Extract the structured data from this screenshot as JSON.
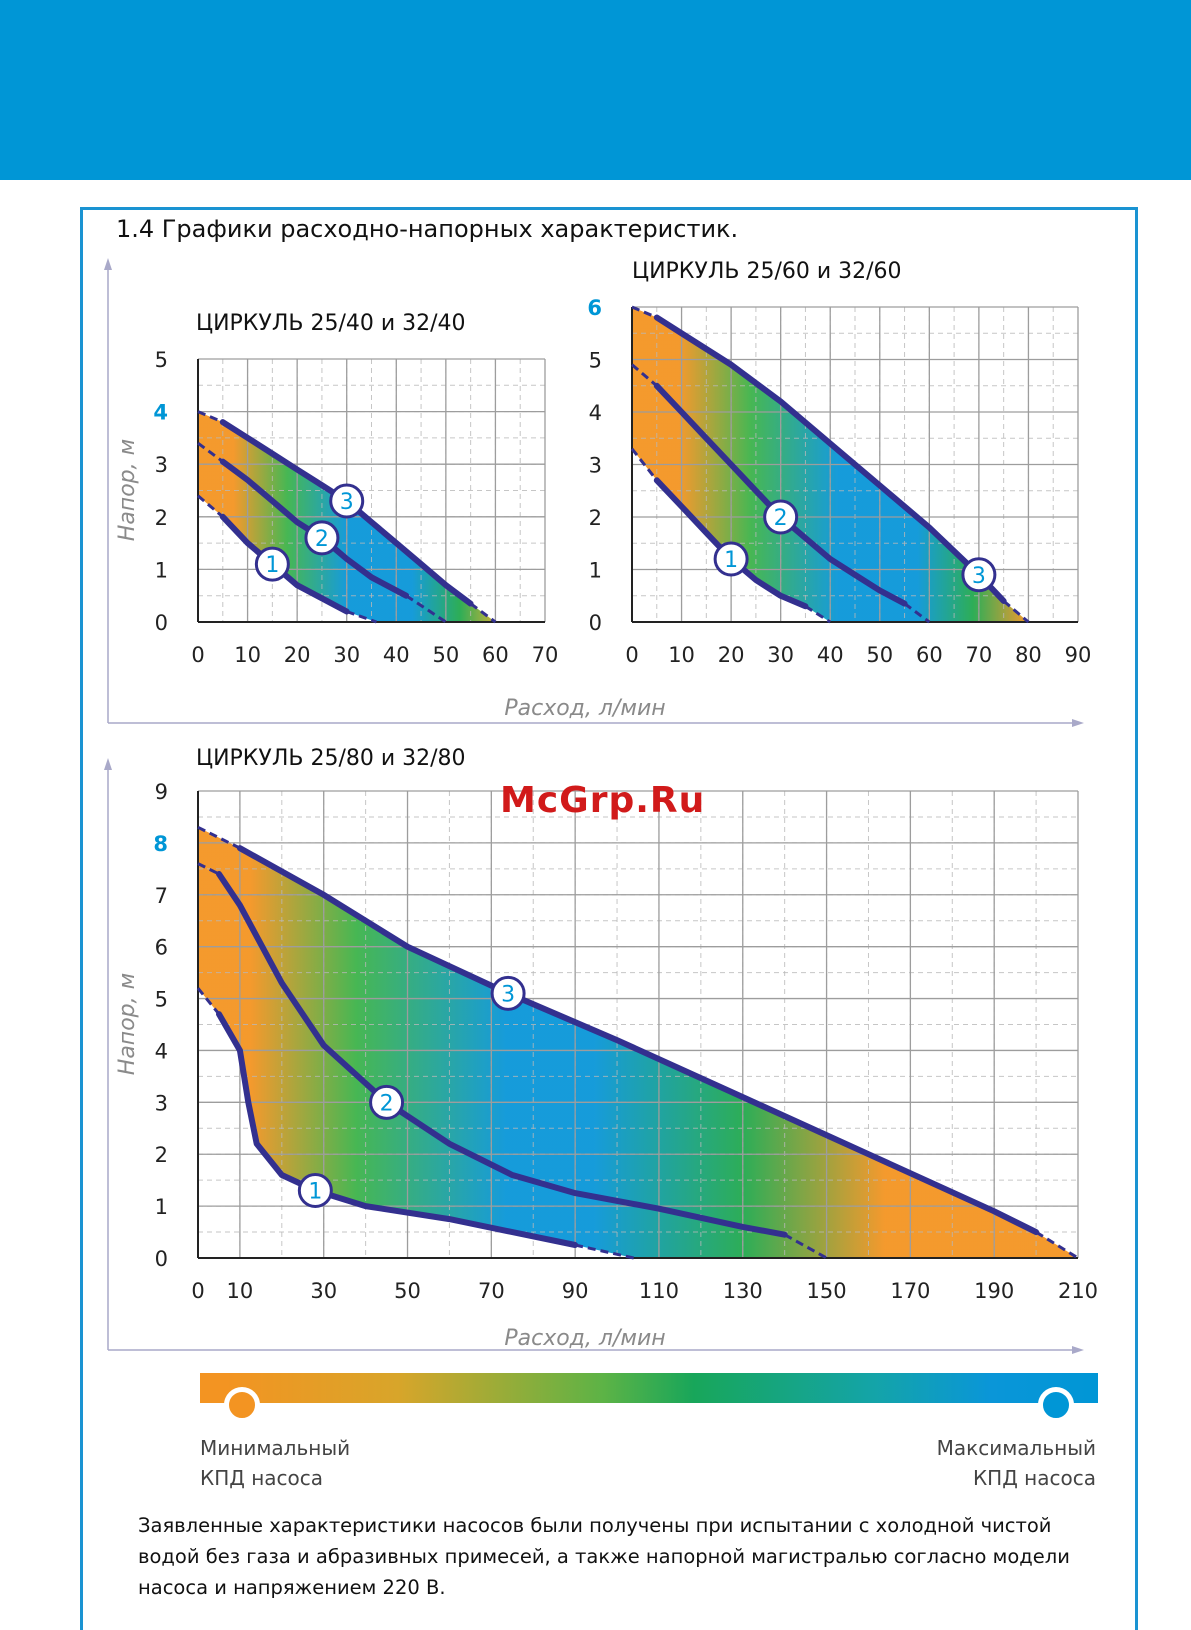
{
  "section_title": "1.4 Графики расходно-напорных характеристик.",
  "watermark": "McGrp.Ru",
  "colors": {
    "header": "#0096d6",
    "curve": "#33308f",
    "min_eff": "#f39422",
    "max_eff": "#0096d6",
    "grid": "#b8b8b8"
  },
  "legend": {
    "min_line1": "Минимальный",
    "min_line2": "КПД насоса",
    "max_line1": "Максимальный",
    "max_line2": "КПД насоса"
  },
  "note": "Заявленные характеристики насосов были получены при испытании с холодной чистой водой без газа и абразивных примесей, а также напорной магистралью согласно модели насоса и напряжением 220 В.",
  "chart_data": [
    {
      "type": "line",
      "title": "ЦИРКУЛЬ 25/40 и 32/40",
      "xlabel": "Расход, л/мин",
      "ylabel": "Напор, м",
      "xlim": [
        0,
        70
      ],
      "ylim": [
        0,
        5
      ],
      "x_ticks": [
        "0",
        "10",
        "20",
        "30",
        "40",
        "50",
        "60",
        "70"
      ],
      "y_ticks": [
        "0",
        "1",
        "2",
        "3",
        "4",
        "5"
      ],
      "highlight_y": "4",
      "grid": true,
      "series": [
        {
          "name": "1",
          "points": [
            [
              0,
              2.4
            ],
            [
              5,
              2.0
            ],
            [
              10,
              1.5
            ],
            [
              15,
              1.1
            ],
            [
              20,
              0.7
            ],
            [
              25,
              0.45
            ],
            [
              30,
              0.2
            ],
            [
              36,
              0.0
            ]
          ]
        },
        {
          "name": "2",
          "points": [
            [
              0,
              3.4
            ],
            [
              5,
              3.05
            ],
            [
              10,
              2.7
            ],
            [
              15,
              2.3
            ],
            [
              20,
              1.9
            ],
            [
              25,
              1.6
            ],
            [
              30,
              1.2
            ],
            [
              35,
              0.85
            ],
            [
              42,
              0.5
            ],
            [
              50,
              0.0
            ]
          ]
        },
        {
          "name": "3",
          "points": [
            [
              0,
              4.0
            ],
            [
              5,
              3.8
            ],
            [
              10,
              3.5
            ],
            [
              15,
              3.2
            ],
            [
              20,
              2.9
            ],
            [
              25,
              2.6
            ],
            [
              30,
              2.3
            ],
            [
              35,
              1.9
            ],
            [
              40,
              1.5
            ],
            [
              45,
              1.1
            ],
            [
              50,
              0.7
            ],
            [
              55,
              0.35
            ],
            [
              60,
              0.0
            ]
          ]
        }
      ]
    },
    {
      "type": "line",
      "title": "ЦИРКУЛЬ 25/60 и 32/60",
      "xlabel": "Расход, л/мин",
      "ylabel": "Напор, м",
      "xlim": [
        0,
        90
      ],
      "ylim": [
        0,
        6
      ],
      "x_ticks": [
        "0",
        "10",
        "20",
        "30",
        "40",
        "50",
        "60",
        "70",
        "80",
        "90"
      ],
      "y_ticks": [
        "0",
        "1",
        "2",
        "3",
        "4",
        "5",
        "6"
      ],
      "highlight_y": "6",
      "grid": true,
      "series": [
        {
          "name": "1",
          "points": [
            [
              0,
              3.3
            ],
            [
              5,
              2.7
            ],
            [
              10,
              2.2
            ],
            [
              15,
              1.7
            ],
            [
              20,
              1.2
            ],
            [
              25,
              0.8
            ],
            [
              30,
              0.5
            ],
            [
              35,
              0.3
            ],
            [
              40,
              0.0
            ]
          ]
        },
        {
          "name": "2",
          "points": [
            [
              0,
              4.9
            ],
            [
              5,
              4.5
            ],
            [
              10,
              4.0
            ],
            [
              15,
              3.5
            ],
            [
              20,
              3.0
            ],
            [
              25,
              2.5
            ],
            [
              30,
              2.0
            ],
            [
              35,
              1.6
            ],
            [
              40,
              1.2
            ],
            [
              45,
              0.9
            ],
            [
              50,
              0.6
            ],
            [
              55,
              0.35
            ],
            [
              60,
              0.0
            ]
          ]
        },
        {
          "name": "3",
          "points": [
            [
              0,
              6.0
            ],
            [
              5,
              5.8
            ],
            [
              10,
              5.5
            ],
            [
              20,
              4.9
            ],
            [
              30,
              4.2
            ],
            [
              40,
              3.4
            ],
            [
              50,
              2.6
            ],
            [
              60,
              1.8
            ],
            [
              70,
              0.9
            ],
            [
              75,
              0.4
            ],
            [
              80,
              0.0
            ]
          ]
        }
      ]
    },
    {
      "type": "line",
      "title": "ЦИРКУЛЬ 25/80 и 32/80",
      "xlabel": "Расход, л/мин",
      "ylabel": "Напор, м",
      "xlim": [
        0,
        210
      ],
      "ylim": [
        0,
        9
      ],
      "x_ticks": [
        "0",
        "10",
        "30",
        "50",
        "70",
        "90",
        "110",
        "130",
        "150",
        "170",
        "190",
        "210"
      ],
      "x_tick_values": [
        0,
        10,
        30,
        50,
        70,
        90,
        110,
        130,
        150,
        170,
        190,
        210
      ],
      "y_ticks": [
        "0",
        "1",
        "2",
        "3",
        "4",
        "5",
        "6",
        "7",
        "8",
        "9"
      ],
      "highlight_y": "8",
      "grid": true,
      "series": [
        {
          "name": "1",
          "points": [
            [
              0,
              5.2
            ],
            [
              5,
              4.7
            ],
            [
              10,
              4.0
            ],
            [
              12,
              3.0
            ],
            [
              14,
              2.2
            ],
            [
              20,
              1.6
            ],
            [
              28,
              1.3
            ],
            [
              40,
              1.0
            ],
            [
              60,
              0.75
            ],
            [
              75,
              0.5
            ],
            [
              90,
              0.25
            ],
            [
              104,
              0.0
            ]
          ]
        },
        {
          "name": "2",
          "points": [
            [
              0,
              7.6
            ],
            [
              5,
              7.4
            ],
            [
              10,
              6.8
            ],
            [
              20,
              5.3
            ],
            [
              30,
              4.1
            ],
            [
              45,
              3.0
            ],
            [
              60,
              2.2
            ],
            [
              75,
              1.6
            ],
            [
              90,
              1.25
            ],
            [
              110,
              0.95
            ],
            [
              130,
              0.6
            ],
            [
              140,
              0.45
            ],
            [
              150,
              0.0
            ]
          ]
        },
        {
          "name": "3",
          "points": [
            [
              0,
              8.3
            ],
            [
              10,
              7.9
            ],
            [
              30,
              7.0
            ],
            [
              50,
              6.0
            ],
            [
              74,
              5.1
            ],
            [
              100,
              4.2
            ],
            [
              130,
              3.1
            ],
            [
              160,
              2.0
            ],
            [
              190,
              0.9
            ],
            [
              200,
              0.5
            ],
            [
              210,
              0.0
            ]
          ]
        }
      ]
    }
  ]
}
